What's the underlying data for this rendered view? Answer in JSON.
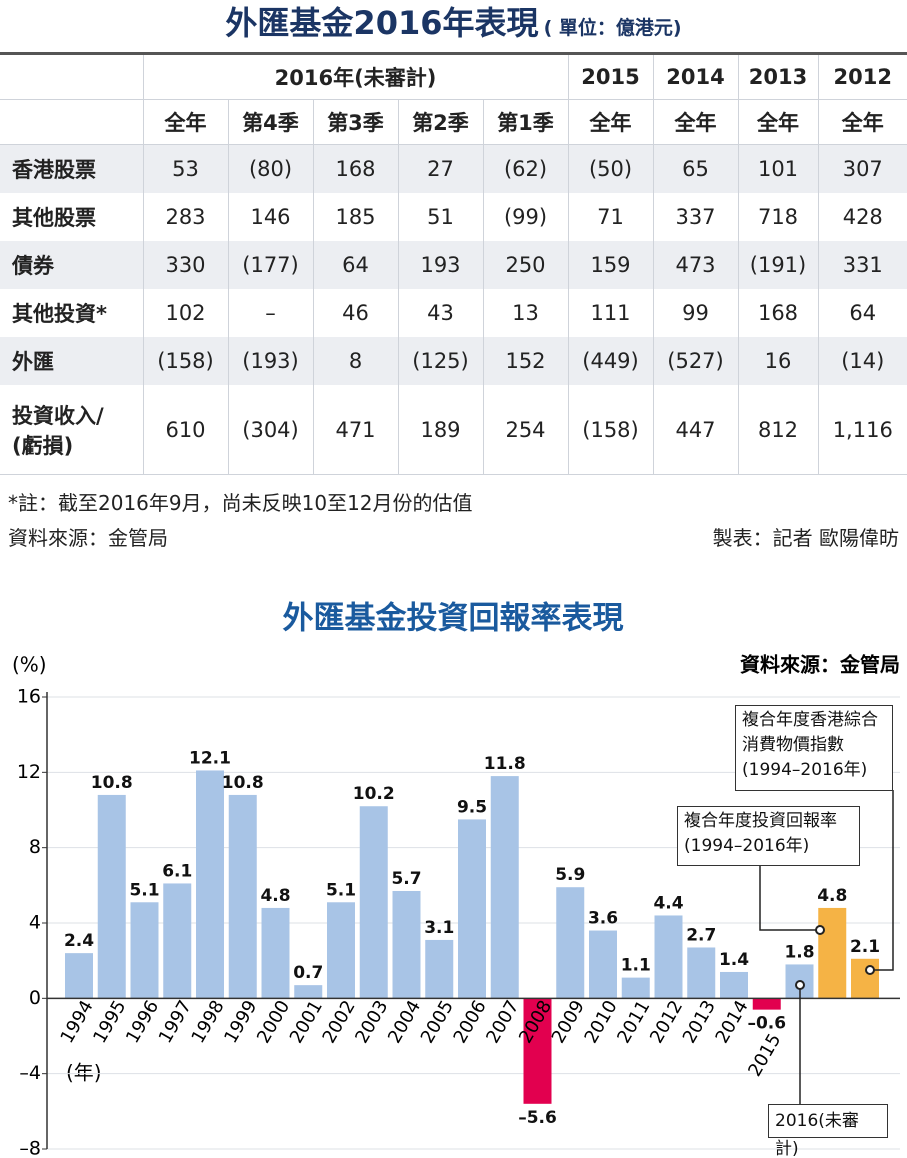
{
  "table": {
    "title": "外匯基金2016年表現",
    "unit": "( 單位：億港元)",
    "header_groups": [
      "2016年(未審計)",
      "2015",
      "2014",
      "2013",
      "2012"
    ],
    "subheaders": [
      "全年",
      "第4季",
      "第3季",
      "第2季",
      "第1季",
      "全年",
      "全年",
      "全年",
      "全年"
    ],
    "rows": [
      {
        "label": "香港股票",
        "cells": [
          "53",
          "(80)",
          "168",
          "27",
          "(62)",
          "(50)",
          "65",
          "101",
          "307"
        ]
      },
      {
        "label": "其他股票",
        "cells": [
          "283",
          "146",
          "185",
          "51",
          "(99)",
          "71",
          "337",
          "718",
          "428"
        ]
      },
      {
        "label": "債券",
        "cells": [
          "330",
          "(177)",
          "64",
          "193",
          "250",
          "159",
          "473",
          "(191)",
          "331"
        ]
      },
      {
        "label": "其他投資*",
        "cells": [
          "102",
          "–",
          "46",
          "43",
          "13",
          "111",
          "99",
          "168",
          "64"
        ]
      },
      {
        "label": "外匯",
        "cells": [
          "(158)",
          "(193)",
          "8",
          "(125)",
          "152",
          "(449)",
          "(527)",
          "16",
          "(14)"
        ]
      },
      {
        "label": "投資收入/\n(虧損)",
        "cells": [
          "610",
          "(304)",
          "471",
          "189",
          "254",
          "(158)",
          "447",
          "812",
          "1,116"
        ]
      }
    ],
    "note": "*註：截至2016年9月，尚未反映10至12月份的估值",
    "source": "資料來源：金管局",
    "credit": "製表：記者 歐陽偉昉"
  },
  "chart_data": {
    "type": "bar",
    "title": "外匯基金投資回報率表現",
    "y_label": "(%)",
    "x_label": "(年)",
    "source": "資料來源：金管局",
    "categories": [
      "1994",
      "1995",
      "1996",
      "1997",
      "1998",
      "1999",
      "2000",
      "2001",
      "2002",
      "2003",
      "2004",
      "2005",
      "2006",
      "2007",
      "2008",
      "2009",
      "2010",
      "2011",
      "2012",
      "2013",
      "2014",
      "2015",
      null,
      null,
      null
    ],
    "values": [
      2.4,
      10.8,
      5.1,
      6.1,
      12.1,
      10.8,
      4.8,
      0.7,
      5.1,
      10.2,
      5.7,
      3.1,
      9.5,
      11.8,
      -5.6,
      5.9,
      3.6,
      1.1,
      4.4,
      2.7,
      1.4,
      -0.6,
      1.8,
      4.8,
      2.1
    ],
    "value_labels": [
      "2.4",
      "10.8",
      "5.1",
      "6.1",
      "12.1",
      "10.8",
      "4.8",
      "0.7",
      "5.1",
      "10.2",
      "5.7",
      "3.1",
      "9.5",
      "11.8",
      "–5.6",
      "5.9",
      "3.6",
      "1.1",
      "4.4",
      "2.7",
      "1.4",
      "–0.6",
      "1.8",
      "4.8",
      "2.1"
    ],
    "colors": [
      "#a8c4e6",
      "#a8c4e6",
      "#a8c4e6",
      "#a8c4e6",
      "#a8c4e6",
      "#a8c4e6",
      "#a8c4e6",
      "#a8c4e6",
      "#a8c4e6",
      "#a8c4e6",
      "#a8c4e6",
      "#a8c4e6",
      "#a8c4e6",
      "#a8c4e6",
      "#e2004f",
      "#a8c4e6",
      "#a8c4e6",
      "#a8c4e6",
      "#a8c4e6",
      "#a8c4e6",
      "#a8c4e6",
      "#e2004f",
      "#a8c4e6",
      "#f5b345",
      "#f5b345"
    ],
    "annotations": [
      "複合年度香港綜合\n消費物價指數\n(1994–2016年)",
      "複合年度投資回報率\n(1994–2016年)",
      "2016(未審計)"
    ],
    "ylim": [
      -8,
      16
    ],
    "yticks": [
      {
        "value": -8,
        "label": "–8"
      },
      {
        "value": -4,
        "label": "–4"
      },
      0,
      4,
      8,
      12,
      16
    ],
    "grid": true
  }
}
